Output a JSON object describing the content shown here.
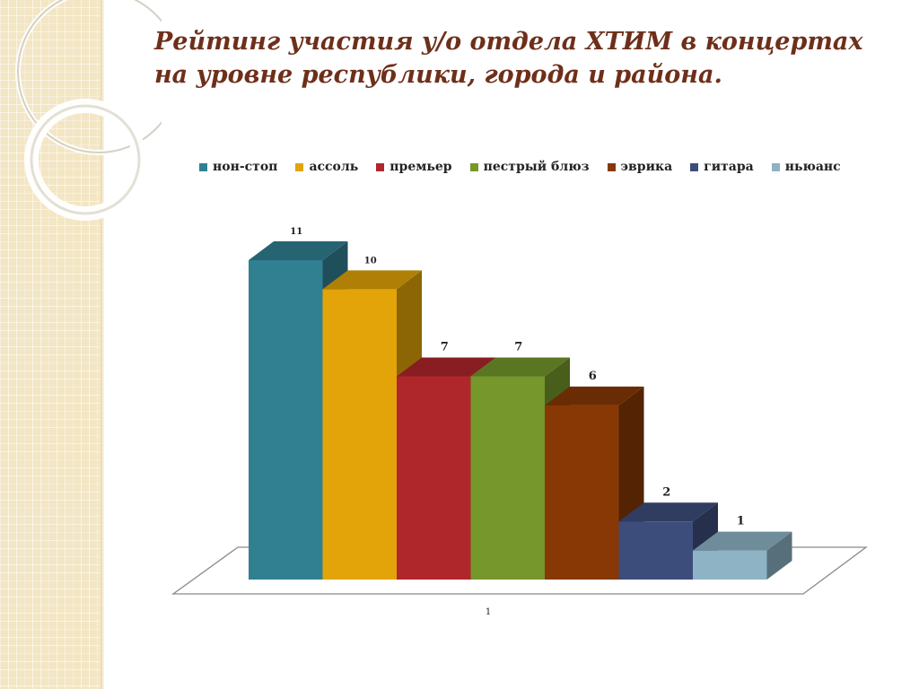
{
  "title": "Рейтинг участия у/о отдела ХТИМ в концертах на уровне республики, города и района.",
  "chart_data": {
    "type": "bar",
    "categories": [
      "1"
    ],
    "ylim": [
      0,
      11
    ],
    "grid": false,
    "legend_position": "top",
    "series": [
      {
        "name": "нон-стоп",
        "values": [
          11
        ],
        "color": "#318092"
      },
      {
        "name": "ассоль",
        "values": [
          10
        ],
        "color": "#e2a408"
      },
      {
        "name": "премьер",
        "values": [
          7
        ],
        "color": "#b0272b"
      },
      {
        "name": "пестрый блюз",
        "values": [
          7
        ],
        "color": "#75972c"
      },
      {
        "name": "эврика",
        "values": [
          6
        ],
        "color": "#883805"
      },
      {
        "name": "гитара",
        "values": [
          2
        ],
        "color": "#3d4d7b"
      },
      {
        "name": "ньюанс",
        "values": [
          1
        ],
        "color": "#8db3c4"
      }
    ]
  }
}
